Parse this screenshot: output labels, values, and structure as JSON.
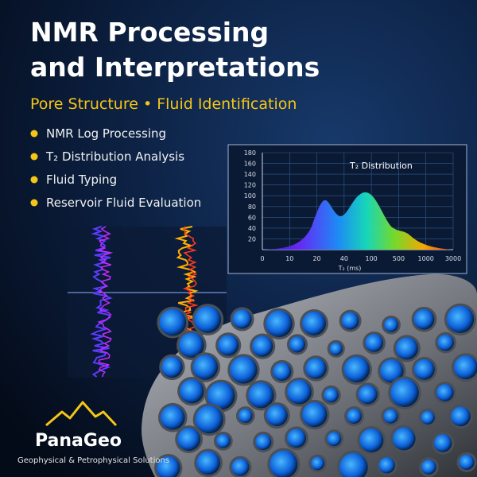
{
  "header": {
    "title_lines": [
      "NMR Processing",
      "and Interpretations"
    ],
    "subtitle": "Pore Structure • Fluid Identification"
  },
  "bullets": [
    "NMR Log Processing",
    "T₂ Distribution Analysis",
    "Fluid Typing",
    "Reservoir Fluid Evaluation"
  ],
  "t2_chart": {
    "title": "T₂ Distribution",
    "y_labels": [
      "180",
      "160",
      "140",
      "120",
      "100",
      "80",
      "60",
      "40",
      "20"
    ],
    "x_labels": [
      "0",
      "10",
      "20",
      "40",
      "100",
      "500",
      "1000",
      "3000"
    ],
    "x_axis_label": "T₂ (ms)"
  },
  "logo": {
    "name": "PanaGeo",
    "tagline": "Geophysical & Petrophysical Solutions"
  }
}
